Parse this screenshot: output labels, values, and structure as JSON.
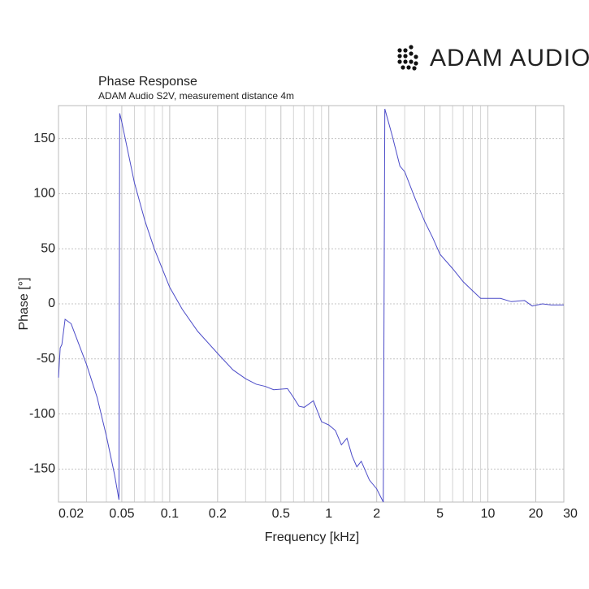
{
  "brand": "ADAM AUDIO",
  "chart_data": {
    "type": "line",
    "title": "Phase Response",
    "subtitle": "ADAM Audio S2V, measurement distance 4m",
    "x_label": "Frequency [kHz]",
    "y_label": "Phase [°]",
    "log_x": true,
    "grid": true,
    "xlim": [
      0.02,
      30
    ],
    "ylim": [
      -180,
      180
    ],
    "xticks": [
      0.02,
      0.05,
      0.1,
      0.2,
      0.5,
      1,
      2,
      5,
      10,
      20,
      30
    ],
    "xgrid": [
      0.03,
      0.04,
      0.06,
      0.07,
      0.08,
      0.09,
      0.3,
      0.4,
      0.6,
      0.7,
      0.8,
      0.9,
      3,
      4,
      6,
      7,
      8,
      9
    ],
    "yticks": [
      -150,
      -100,
      -50,
      0,
      50,
      100,
      150
    ],
    "series": [
      {
        "color": "#4b4bc8",
        "x": [
          0.02,
          0.0205,
          0.021,
          0.022,
          0.024,
          0.03,
          0.035,
          0.04,
          0.045,
          0.048,
          0.0485,
          0.05,
          0.06,
          0.07,
          0.08,
          0.1,
          0.12,
          0.15,
          0.2,
          0.25,
          0.3,
          0.35,
          0.4,
          0.45,
          0.55,
          0.6,
          0.65,
          0.7,
          0.8,
          0.9,
          1,
          1.1,
          1.2,
          1.3,
          1.4,
          1.5,
          1.6,
          1.8,
          2,
          2.2,
          2.25,
          2.5,
          2.8,
          3,
          3.5,
          4,
          4.5,
          5,
          6,
          7,
          8,
          9,
          10,
          12,
          14,
          17,
          19,
          22,
          25,
          30
        ],
        "values": [
          -67,
          -40,
          -37,
          -14,
          -18,
          -55,
          -85,
          -120,
          -155,
          -178,
          173,
          165,
          110,
          75,
          50,
          15,
          -5,
          -25,
          -45,
          -60,
          -68,
          -73,
          -75,
          -78,
          -77,
          -85,
          -93,
          -94,
          -88,
          -107,
          -110,
          -115,
          -128,
          -122,
          -138,
          -148,
          -143,
          -160,
          -168,
          -180,
          177,
          153,
          125,
          120,
          95,
          75,
          60,
          45,
          32,
          20,
          12,
          5,
          5,
          5,
          2,
          3,
          -2,
          0,
          -1,
          -1
        ]
      }
    ]
  }
}
